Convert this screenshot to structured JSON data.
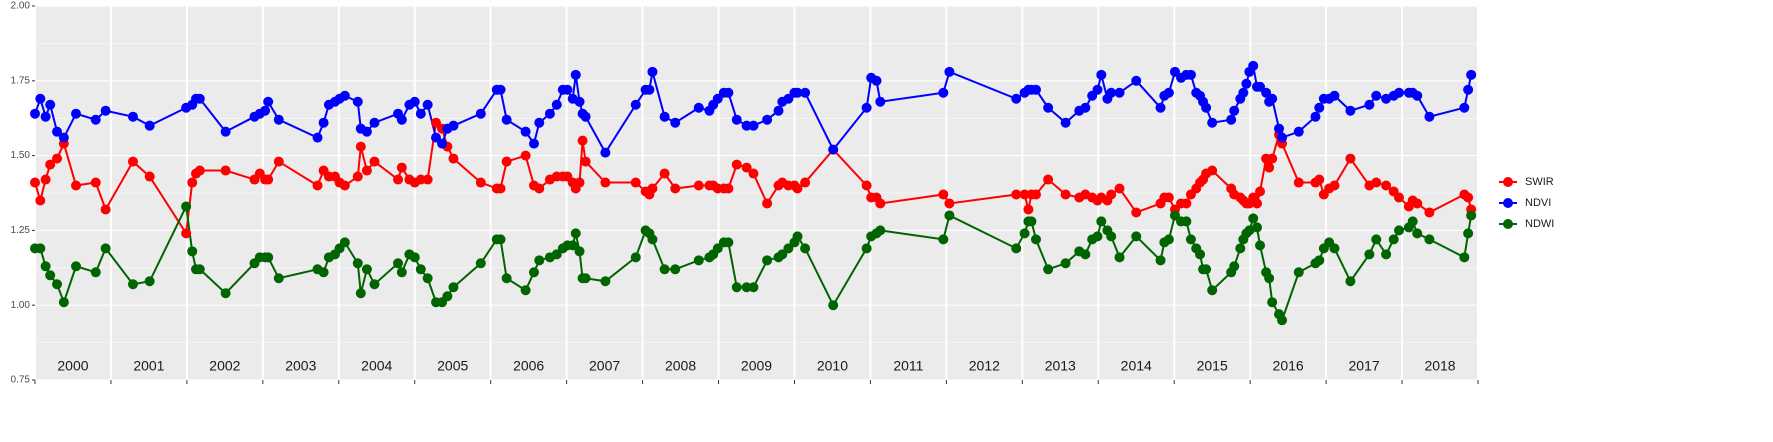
{
  "chart_data": {
    "type": "line",
    "xlim": [
      2000,
      2019
    ],
    "xticks": [
      2000,
      2001,
      2002,
      2003,
      2004,
      2005,
      2006,
      2007,
      2008,
      2009,
      2010,
      2011,
      2012,
      2013,
      2014,
      2015,
      2016,
      2017,
      2018,
      2019
    ],
    "year_labels": [
      {
        "value": 2000.5,
        "label": "2000"
      },
      {
        "value": 2001.5,
        "label": "2001"
      },
      {
        "value": 2002.5,
        "label": "2002"
      },
      {
        "value": 2003.5,
        "label": "2003"
      },
      {
        "value": 2004.5,
        "label": "2004"
      },
      {
        "value": 2005.5,
        "label": "2005"
      },
      {
        "value": 2006.5,
        "label": "2006"
      },
      {
        "value": 2007.5,
        "label": "2007"
      },
      {
        "value": 2008.5,
        "label": "2008"
      },
      {
        "value": 2009.5,
        "label": "2009"
      },
      {
        "value": 2010.5,
        "label": "2010"
      },
      {
        "value": 2011.5,
        "label": "2011"
      },
      {
        "value": 2012.5,
        "label": "2012"
      },
      {
        "value": 2013.5,
        "label": "2013"
      },
      {
        "value": 2014.5,
        "label": "2014"
      },
      {
        "value": 2015.5,
        "label": "2015"
      },
      {
        "value": 2016.5,
        "label": "2016"
      },
      {
        "value": 2017.5,
        "label": "2017"
      },
      {
        "value": 2018.5,
        "label": "2018"
      }
    ],
    "ylim": [
      0.75,
      2.0
    ],
    "yticks": [
      {
        "value": 0.75,
        "label": "0.75"
      },
      {
        "value": 1.0,
        "label": "1.00"
      },
      {
        "value": 1.25,
        "label": "1.25"
      },
      {
        "value": 1.5,
        "label": "1.50"
      },
      {
        "value": 1.75,
        "label": "1.75"
      },
      {
        "value": 2.0,
        "label": "2.00"
      }
    ],
    "grid": true,
    "legend_position": "right",
    "x": [
      2000.0,
      2000.07,
      2000.14,
      2000.2,
      2000.29,
      2000.38,
      2000.54,
      2000.8,
      2000.93,
      2001.29,
      2001.51,
      2001.99,
      2002.07,
      2002.12,
      2002.17,
      2002.51,
      2002.89,
      2002.96,
      2003.03,
      2003.07,
      2003.21,
      2003.72,
      2003.8,
      2003.87,
      2003.95,
      2004.01,
      2004.08,
      2004.25,
      2004.29,
      2004.37,
      2004.47,
      2004.78,
      2004.83,
      2004.93,
      2005.0,
      2005.08,
      2005.17,
      2005.28,
      2005.36,
      2005.43,
      2005.51,
      2005.87,
      2006.08,
      2006.13,
      2006.21,
      2006.46,
      2006.57,
      2006.64,
      2006.78,
      2006.87,
      2006.95,
      2007.01,
      2007.08,
      2007.12,
      2007.17,
      2007.21,
      2007.25,
      2007.51,
      2007.91,
      2008.04,
      2008.09,
      2008.13,
      2008.29,
      2008.43,
      2008.74,
      2008.88,
      2008.93,
      2008.99,
      2009.07,
      2009.13,
      2009.24,
      2009.37,
      2009.46,
      2009.64,
      2009.79,
      2009.84,
      2009.92,
      2010.0,
      2010.04,
      2010.14,
      2010.51,
      2010.95,
      2011.01,
      2011.08,
      2011.13,
      2011.96,
      2012.04,
      2012.92,
      2013.03,
      2013.08,
      2013.12,
      2013.18,
      2013.34,
      2013.57,
      2013.75,
      2013.83,
      2013.92,
      2013.99,
      2014.04,
      2014.12,
      2014.17,
      2014.28,
      2014.5,
      2014.82,
      2014.87,
      2014.93,
      2015.01,
      2015.09,
      2015.16,
      2015.22,
      2015.29,
      2015.34,
      2015.38,
      2015.42,
      2015.5,
      2015.75,
      2015.79,
      2015.87,
      2015.91,
      2015.95,
      2015.99,
      2016.04,
      2016.09,
      2016.13,
      2016.21,
      2016.25,
      2016.29,
      2016.38,
      2016.42,
      2016.64,
      2016.86,
      2016.91,
      2016.97,
      2017.04,
      2017.11,
      2017.32,
      2017.57,
      2017.66,
      2017.79,
      2017.89,
      2017.96,
      2018.09,
      2018.14,
      2018.2,
      2018.36,
      2018.82,
      2018.87,
      2018.91
    ],
    "series": [
      {
        "name": "SWIR",
        "color": "#ff0000",
        "values": [
          1.41,
          1.35,
          1.42,
          1.47,
          1.49,
          1.54,
          1.4,
          1.41,
          1.32,
          1.48,
          1.43,
          1.24,
          1.41,
          1.44,
          1.45,
          1.45,
          1.42,
          1.44,
          1.42,
          1.42,
          1.48,
          1.4,
          1.45,
          1.43,
          1.43,
          1.41,
          1.4,
          1.43,
          1.53,
          1.45,
          1.48,
          1.42,
          1.46,
          1.42,
          1.41,
          1.42,
          1.42,
          1.61,
          1.59,
          1.53,
          1.49,
          1.41,
          1.39,
          1.39,
          1.48,
          1.5,
          1.4,
          1.39,
          1.42,
          1.43,
          1.43,
          1.43,
          1.41,
          1.39,
          1.41,
          1.55,
          1.48,
          1.41,
          1.41,
          1.38,
          1.37,
          1.39,
          1.44,
          1.39,
          1.4,
          1.4,
          1.4,
          1.39,
          1.39,
          1.39,
          1.47,
          1.46,
          1.44,
          1.34,
          1.4,
          1.41,
          1.4,
          1.4,
          1.39,
          1.41,
          1.52,
          1.4,
          1.36,
          1.36,
          1.34,
          1.37,
          1.34,
          1.37,
          1.37,
          1.32,
          1.37,
          1.37,
          1.42,
          1.37,
          1.36,
          1.37,
          1.36,
          1.35,
          1.36,
          1.35,
          1.37,
          1.39,
          1.31,
          1.34,
          1.36,
          1.36,
          1.32,
          1.34,
          1.34,
          1.37,
          1.39,
          1.41,
          1.42,
          1.44,
          1.45,
          1.39,
          1.37,
          1.36,
          1.35,
          1.34,
          1.34,
          1.36,
          1.34,
          1.38,
          1.49,
          1.46,
          1.49,
          1.57,
          1.54,
          1.41,
          1.41,
          1.42,
          1.37,
          1.39,
          1.4,
          1.49,
          1.4,
          1.41,
          1.4,
          1.38,
          1.36,
          1.33,
          1.35,
          1.34,
          1.31,
          1.37,
          1.36,
          1.32
        ]
      },
      {
        "name": "NDVI",
        "color": "#0000ff",
        "values": [
          1.64,
          1.69,
          1.63,
          1.67,
          1.58,
          1.56,
          1.64,
          1.62,
          1.65,
          1.63,
          1.6,
          1.66,
          1.67,
          1.69,
          1.69,
          1.58,
          1.63,
          1.64,
          1.65,
          1.68,
          1.62,
          1.56,
          1.61,
          1.67,
          1.68,
          1.69,
          1.7,
          1.68,
          1.59,
          1.58,
          1.61,
          1.64,
          1.62,
          1.67,
          1.68,
          1.64,
          1.67,
          1.56,
          1.54,
          1.59,
          1.6,
          1.64,
          1.72,
          1.72,
          1.62,
          1.58,
          1.54,
          1.61,
          1.64,
          1.67,
          1.72,
          1.72,
          1.69,
          1.77,
          1.68,
          1.64,
          1.63,
          1.51,
          1.67,
          1.72,
          1.72,
          1.78,
          1.63,
          1.61,
          1.66,
          1.65,
          1.67,
          1.69,
          1.71,
          1.71,
          1.62,
          1.6,
          1.6,
          1.62,
          1.65,
          1.68,
          1.69,
          1.71,
          1.71,
          1.71,
          1.52,
          1.66,
          1.76,
          1.75,
          1.68,
          1.71,
          1.78,
          1.69,
          1.71,
          1.72,
          1.72,
          1.72,
          1.66,
          1.61,
          1.65,
          1.66,
          1.7,
          1.72,
          1.77,
          1.69,
          1.71,
          1.71,
          1.75,
          1.66,
          1.7,
          1.71,
          1.78,
          1.76,
          1.77,
          1.77,
          1.71,
          1.7,
          1.68,
          1.66,
          1.61,
          1.62,
          1.65,
          1.69,
          1.71,
          1.74,
          1.78,
          1.8,
          1.73,
          1.73,
          1.71,
          1.68,
          1.69,
          1.59,
          1.56,
          1.58,
          1.63,
          1.66,
          1.69,
          1.69,
          1.7,
          1.65,
          1.67,
          1.7,
          1.69,
          1.7,
          1.71,
          1.71,
          1.71,
          1.7,
          1.63,
          1.66,
          1.72,
          1.77
        ]
      },
      {
        "name": "NDWI",
        "color": "#006400",
        "values": [
          1.19,
          1.19,
          1.13,
          1.1,
          1.07,
          1.01,
          1.13,
          1.11,
          1.19,
          1.07,
          1.08,
          1.33,
          1.18,
          1.12,
          1.12,
          1.04,
          1.14,
          1.16,
          1.16,
          1.16,
          1.09,
          1.12,
          1.11,
          1.16,
          1.17,
          1.19,
          1.21,
          1.14,
          1.04,
          1.12,
          1.07,
          1.14,
          1.11,
          1.17,
          1.16,
          1.12,
          1.09,
          1.01,
          1.01,
          1.03,
          1.06,
          1.14,
          1.22,
          1.22,
          1.09,
          1.05,
          1.11,
          1.15,
          1.16,
          1.17,
          1.19,
          1.2,
          1.2,
          1.24,
          1.18,
          1.09,
          1.09,
          1.08,
          1.16,
          1.25,
          1.24,
          1.22,
          1.12,
          1.12,
          1.15,
          1.16,
          1.17,
          1.19,
          1.21,
          1.21,
          1.06,
          1.06,
          1.06,
          1.15,
          1.16,
          1.17,
          1.19,
          1.21,
          1.23,
          1.19,
          1.0,
          1.19,
          1.23,
          1.24,
          1.25,
          1.22,
          1.3,
          1.19,
          1.24,
          1.28,
          1.28,
          1.22,
          1.12,
          1.14,
          1.18,
          1.17,
          1.22,
          1.23,
          1.28,
          1.25,
          1.23,
          1.16,
          1.23,
          1.15,
          1.21,
          1.22,
          1.3,
          1.28,
          1.28,
          1.22,
          1.19,
          1.17,
          1.12,
          1.12,
          1.05,
          1.11,
          1.13,
          1.19,
          1.22,
          1.24,
          1.25,
          1.29,
          1.26,
          1.2,
          1.11,
          1.09,
          1.01,
          0.97,
          0.95,
          1.11,
          1.14,
          1.15,
          1.19,
          1.21,
          1.19,
          1.08,
          1.17,
          1.22,
          1.17,
          1.22,
          1.25,
          1.26,
          1.28,
          1.24,
          1.22,
          1.16,
          1.24,
          1.3
        ]
      }
    ]
  }
}
